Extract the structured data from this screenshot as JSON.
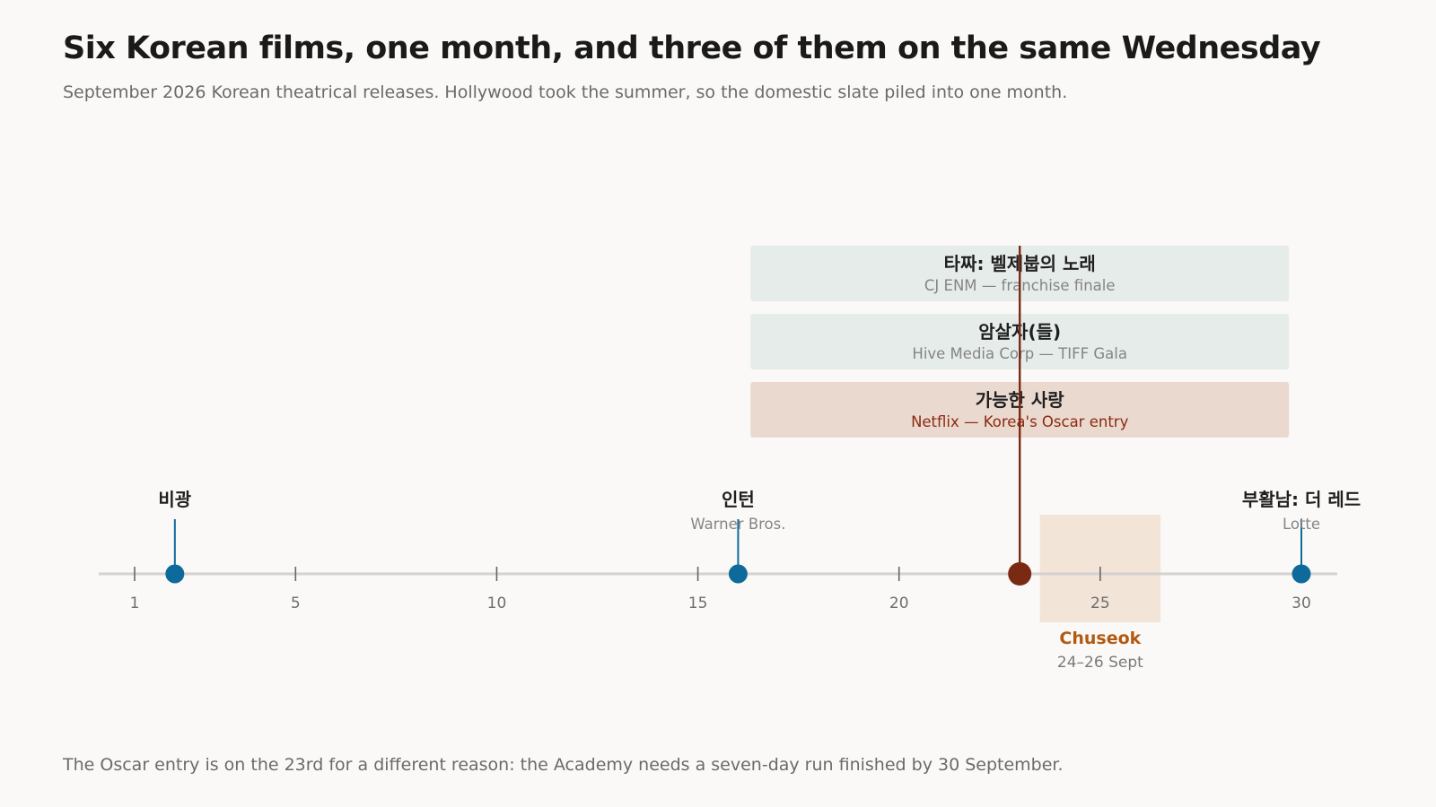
{
  "title": "Six Korean films, one month, and three of them on the same Wednesday",
  "subtitle": "September 2026 Korean theatrical releases. Hollywood took the summer, so the domestic slate piled into one month.",
  "footnote": "The Oscar entry is on the 23rd for a different reason: the Academy needs a seven-day run finished by 30 September.",
  "colors": {
    "axis": "#d4d2cf",
    "tick": "#666666",
    "single": "#0f6a9c",
    "stacked": "#7a2a12",
    "box_default": "#e6ecea",
    "box_highlight": "#ead9cf",
    "holiday_band": "#f2e4d7",
    "holiday_text": "#b35a12"
  },
  "chart_data": {
    "type": "timeline",
    "x_range": [
      1,
      30
    ],
    "ticks": [
      "1",
      "5",
      "10",
      "15",
      "20",
      "25",
      "30"
    ],
    "single_releases": [
      {
        "day": 2,
        "title": "비광",
        "distributor": ""
      },
      {
        "day": 16,
        "title": "인턴",
        "distributor": "Warner Bros."
      },
      {
        "day": 30,
        "title": "부활남: 더 레드",
        "distributor": "Lotte"
      }
    ],
    "stacked_release": {
      "day": 23,
      "films": [
        {
          "title": "타짜: 벨제붑의 노래",
          "note": "CJ ENM — franchise finale",
          "highlight": false
        },
        {
          "title": "암살자(들)",
          "note": "Hive Media Corp — TIFF Gala",
          "highlight": false
        },
        {
          "title": "가능한 사랑",
          "note": "Netflix — Korea's Oscar entry",
          "highlight": true
        }
      ]
    },
    "holiday": {
      "name": "Chuseok",
      "label": "24–26 Sept",
      "start": 24,
      "end": 26
    }
  }
}
